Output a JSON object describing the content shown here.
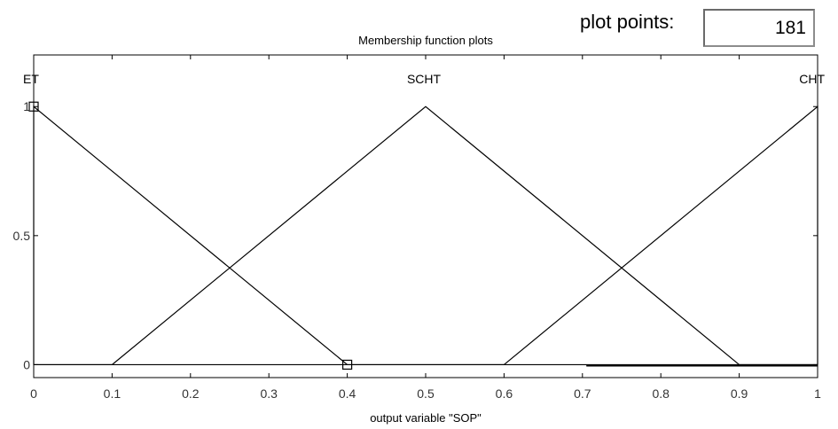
{
  "plot_points": {
    "label": "plot points:",
    "value": "181"
  },
  "chart_data": {
    "type": "line",
    "title": "Membership function plots",
    "xlabel": "output variable \"SOP\"",
    "ylabel": "",
    "xlim": [
      0,
      1
    ],
    "ylim": [
      -0.05,
      1.2
    ],
    "x_ticks": [
      "0",
      "0.1",
      "0.2",
      "0.3",
      "0.4",
      "0.5",
      "0.6",
      "0.7",
      "0.8",
      "0.9",
      "1"
    ],
    "x_tick_values": [
      0,
      0.1,
      0.2,
      0.3,
      0.4,
      0.5,
      0.6,
      0.7,
      0.8,
      0.9,
      1
    ],
    "y_ticks": [
      "0",
      "0.5",
      "1"
    ],
    "y_tick_values": [
      0,
      0.5,
      1
    ],
    "grid": false,
    "line_color": "#000000",
    "series": [
      {
        "name": "ET",
        "x": [
          0,
          0,
          0.4,
          1
        ],
        "y": [
          0,
          1,
          0,
          0
        ],
        "label_x": 0
      },
      {
        "name": "SCHT",
        "x": [
          0,
          0.1,
          0.5,
          0.9,
          1
        ],
        "y": [
          0,
          0,
          1,
          0,
          0
        ],
        "label_x": 0.5
      },
      {
        "name": "CHT",
        "x": [
          0,
          0.6,
          1,
          1
        ],
        "y": [
          0,
          0,
          1,
          0
        ],
        "label_x": 1
      }
    ],
    "selected_markers": [
      {
        "x": 0,
        "y": 1
      },
      {
        "x": 0.4,
        "y": 0
      }
    ]
  }
}
